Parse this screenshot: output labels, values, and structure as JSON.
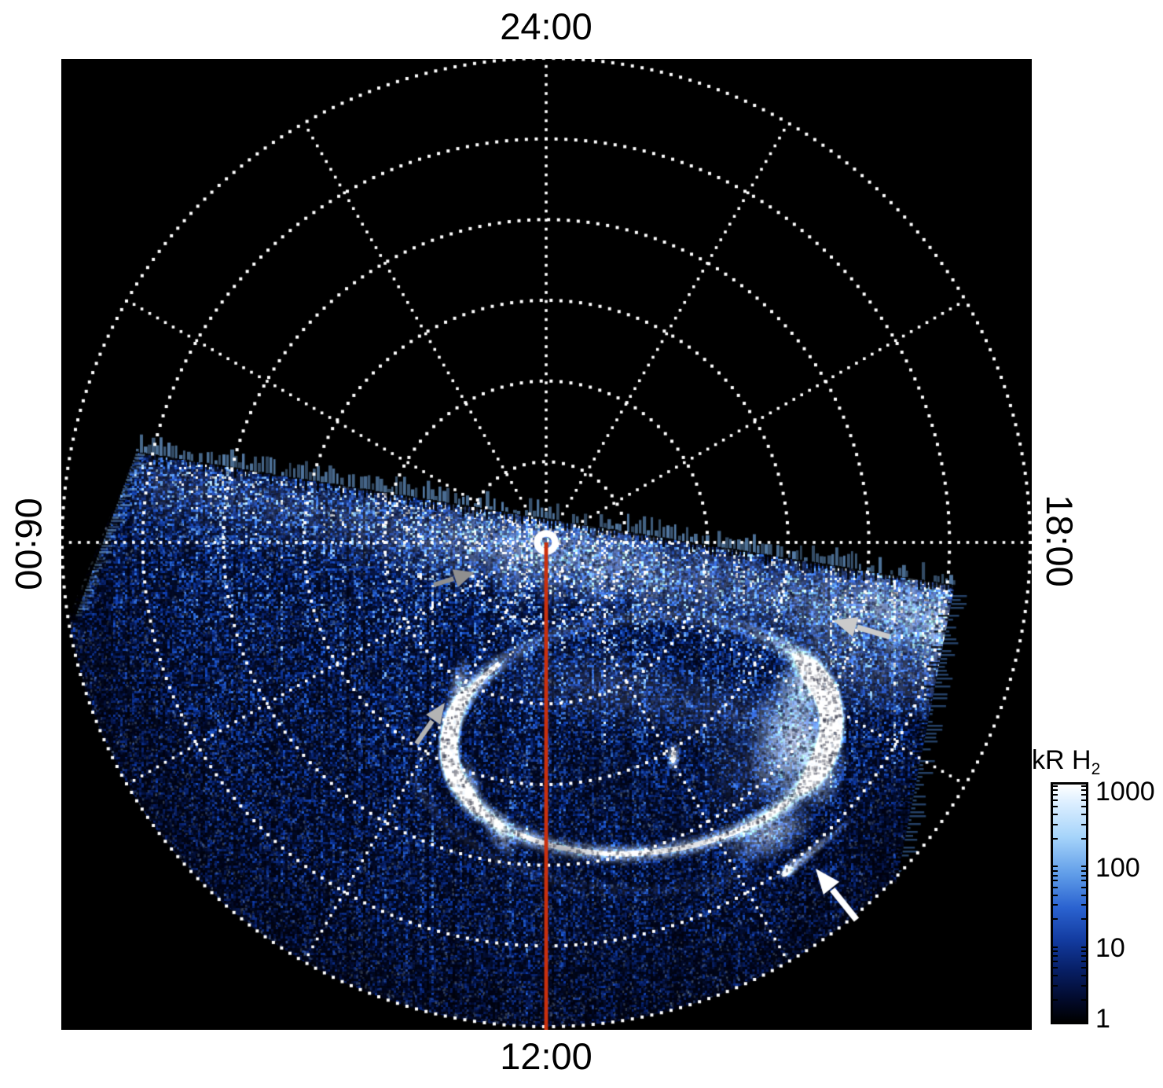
{
  "figure": {
    "kind": "polar auroral emission image",
    "plot_background": "#000000",
    "page_background": "#ffffff",
    "grid_color": "#ffffff",
    "meridian_line_color": "#c9300e"
  },
  "axis_labels": {
    "top": "24:00",
    "bottom": "12:00",
    "left": "06:00",
    "right": "18:00"
  },
  "colorbar": {
    "title_main": "kR H",
    "title_sub": "2",
    "scale": "log",
    "min": 1,
    "max": 1000,
    "ticks": [
      "1000",
      "100",
      "10",
      "1"
    ],
    "gradient_colors": [
      "#ffffff",
      "#a6d4fa",
      "#2a62d0",
      "#071f66",
      "#000000"
    ]
  },
  "chart_data": {
    "type": "heatmap",
    "projection": "polar-local-time",
    "title": "",
    "units": "kR H2",
    "angular_tick_labels": [
      "24:00",
      "06:00",
      "12:00",
      "18:00"
    ],
    "angular_gridline_step_hours": 2,
    "radial_gridlines_count": 6,
    "grid_style": "dotted-white",
    "color_scale": {
      "type": "log",
      "range_kR": [
        1,
        1000
      ]
    },
    "image_content": {
      "description": "Blue/white H2 auroral brightness map filling the dayside sector (between about 06:00 and 18:00 local time, toward 12:00); the nightside sector is black (no data).",
      "features": [
        {
          "label": "main-auroral-oval",
          "appearance": "bright white oval ring offset toward 12:00"
        },
        {
          "label": "bright-oval-arc",
          "appearance": "broad very bright white patch on the dusk-side of the oval"
        },
        {
          "label": "inner-bright-spot",
          "appearance": "small white blob inside the oval"
        },
        {
          "label": "detached-bright-streak",
          "appearance": "comet-like white streak equatorward of the oval"
        },
        {
          "label": "noon-meridian-line",
          "appearance": "red line from the pole toward 12:00",
          "color": "#c9300e"
        },
        {
          "label": "pole-marker",
          "appearance": "white ring at projection center"
        }
      ],
      "annotation_arrows": [
        {
          "color": "#8f8f8f",
          "direction": "pointing right, near the pole ring"
        },
        {
          "color": "#b4b4b4",
          "direction": "pointing up-right at the oval's dawn-side arc"
        },
        {
          "color": "#cbcbcb",
          "direction": "pointing left into diffuse dusk emission"
        },
        {
          "color": "#ffffff",
          "direction": "pointing up-left at the detached bright streak"
        }
      ]
    }
  }
}
